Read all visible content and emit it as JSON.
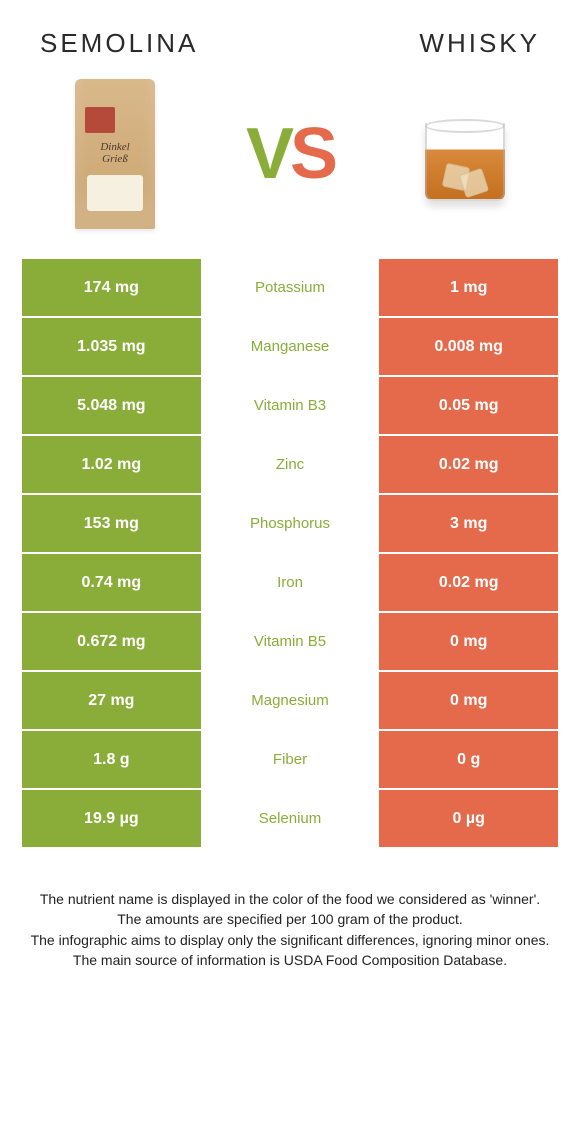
{
  "header": {
    "left_title": "SEMOLINA",
    "right_title": "WHISKY",
    "vs_v": "V",
    "vs_s": "S",
    "bag_label_line1": "Dinkel",
    "bag_label_line2": "Grieß"
  },
  "colors": {
    "left_fill": "#8aad3a",
    "right_fill": "#e56a4b",
    "table_bg": "#ffffff",
    "nutrient_left_color": "#8aad3a",
    "nutrient_right_color": "#e56a4b"
  },
  "table": {
    "rows": [
      {
        "left": "174 mg",
        "nutrient": "Potassium",
        "right": "1 mg",
        "winner": "left"
      },
      {
        "left": "1.035 mg",
        "nutrient": "Manganese",
        "right": "0.008 mg",
        "winner": "left"
      },
      {
        "left": "5.048 mg",
        "nutrient": "Vitamin B3",
        "right": "0.05 mg",
        "winner": "left"
      },
      {
        "left": "1.02 mg",
        "nutrient": "Zinc",
        "right": "0.02 mg",
        "winner": "left"
      },
      {
        "left": "153 mg",
        "nutrient": "Phosphorus",
        "right": "3 mg",
        "winner": "left"
      },
      {
        "left": "0.74 mg",
        "nutrient": "Iron",
        "right": "0.02 mg",
        "winner": "left"
      },
      {
        "left": "0.672 mg",
        "nutrient": "Vitamin B5",
        "right": "0 mg",
        "winner": "left"
      },
      {
        "left": "27 mg",
        "nutrient": "Magnesium",
        "right": "0 mg",
        "winner": "left"
      },
      {
        "left": "1.8 g",
        "nutrient": "Fiber",
        "right": "0 g",
        "winner": "left"
      },
      {
        "left": "19.9 µg",
        "nutrient": "Selenium",
        "right": "0 µg",
        "winner": "left"
      }
    ]
  },
  "footer": {
    "line1": "The nutrient name is displayed in the color of the food we considered as 'winner'.",
    "line2": "The amounts are specified per 100 gram of the product.",
    "line3": "The infographic aims to display only the significant differences, ignoring minor ones.",
    "line4": "The main source of information is USDA Food Composition Database."
  }
}
